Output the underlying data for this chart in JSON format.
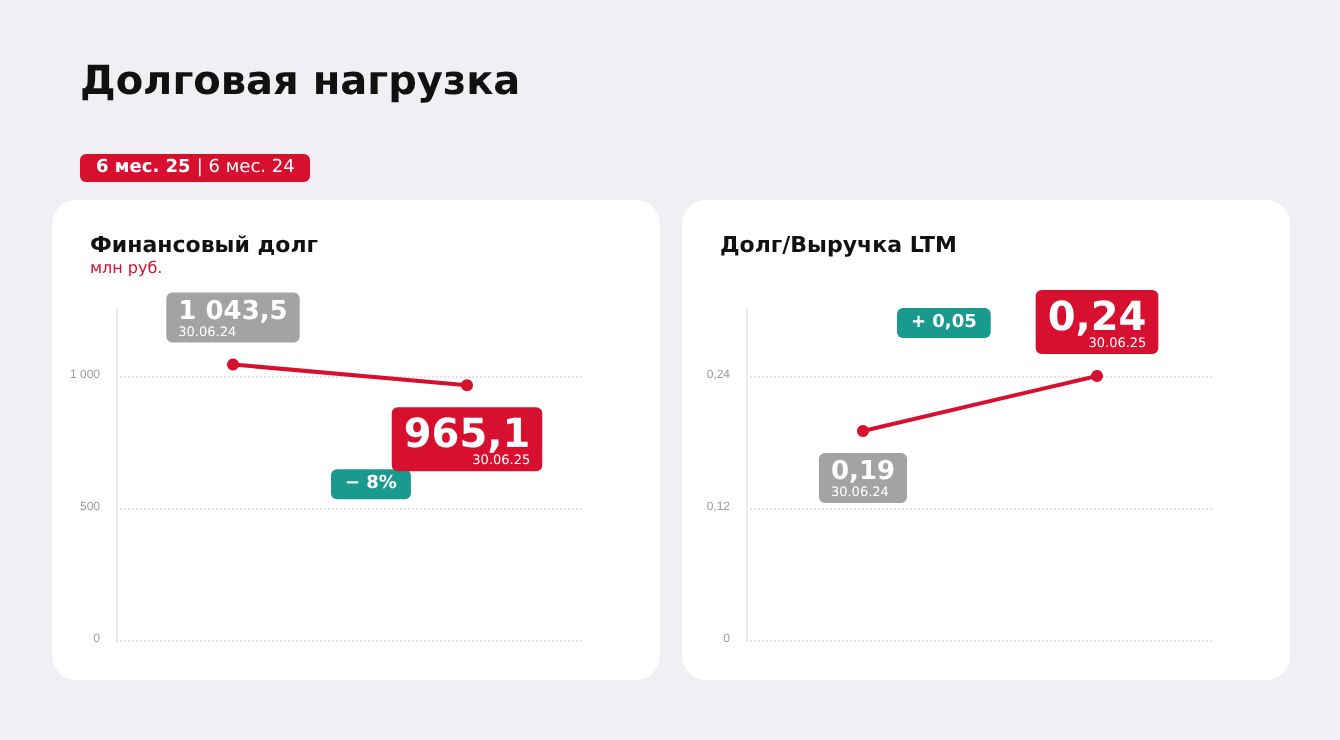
{
  "chart_data": [
    {
      "type": "other",
      "title": "Долговая нагрузка",
      "annotations": [
        "6 мес. 25 | 6 мес. 24"
      ]
    },
    {
      "type": "line",
      "title": "Финансовый долг",
      "subtitle": "млн руб.",
      "categories": [
        "30.06.24",
        "30.06.25"
      ],
      "series": [
        {
          "color": "#d7102f",
          "values": [
            1043.5,
            965.1
          ],
          "value_labels": [
            "1 043,5",
            "965,1"
          ]
        }
      ],
      "ylim": [
        0,
        1250
      ],
      "yticks": [
        {
          "value": 0,
          "label": "0"
        },
        {
          "value": 500,
          "label": "500"
        },
        {
          "value": 1000,
          "label": "1 000"
        }
      ],
      "grid": "y",
      "tick_labels": "y",
      "marker": "circle",
      "annotations": [
        "− 8%"
      ]
    },
    {
      "type": "line",
      "title": "Долг/Выручка LTM",
      "categories": [
        "30.06.24",
        "30.06.25"
      ],
      "series": [
        {
          "color": "#d7102f",
          "values": [
            0.19,
            0.24
          ],
          "value_labels": [
            "0,19",
            "0,24"
          ]
        }
      ],
      "ylim": [
        0,
        0.3
      ],
      "yticks": [
        {
          "value": 0,
          "label": "0"
        },
        {
          "value": 0.12,
          "label": "0,12"
        },
        {
          "value": 0.24,
          "label": "0,24"
        }
      ],
      "grid": "y",
      "tick_labels": "y",
      "marker": "circle",
      "annotations": [
        "+ 0,05"
      ]
    }
  ]
}
